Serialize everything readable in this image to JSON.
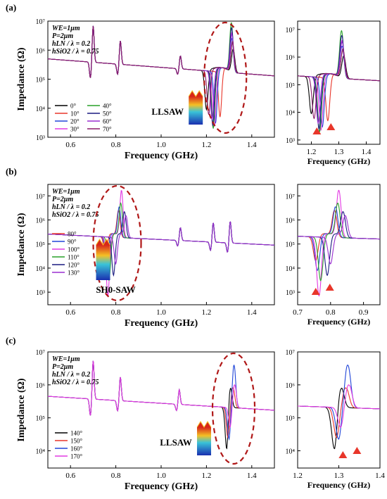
{
  "figure": {
    "panels": [
      {
        "label": "(a)",
        "annotation": [
          "WE=1μm",
          "P=2μm",
          "hLN / λ = 0.2",
          "hSiO2 / λ = 0.75"
        ],
        "mode_label": "LLSAW",
        "main_xlabel": "Frequency (GHz)",
        "main_ylabel": "Impedance (Ω)",
        "zoom_xlabel": "Frequency (GHz)"
      },
      {
        "label": "(b)",
        "annotation": [
          "WE=1μm",
          "P=2μm",
          "hLN / λ = 0.2",
          "hSiO2 / λ = 0.75"
        ],
        "mode_label": "SH0-SAW",
        "main_xlabel": "Frequency (GHz)",
        "main_ylabel": "Impedance (Ω)",
        "zoom_xlabel": "Frequency (GHz)"
      },
      {
        "label": "(c)",
        "annotation": [
          "WE=1μm",
          "P=2μm",
          "hLN / λ = 0.2",
          "hSiO2 / λ = 0.75"
        ],
        "mode_label": "LLSAW",
        "main_xlabel": "Frequency (GHz)",
        "main_ylabel": "Impedance (Ω)",
        "zoom_xlabel": "Frequency (GHz)"
      }
    ]
  },
  "chart_data": [
    {
      "type": "line",
      "panel": "(a)",
      "xlabel": "Frequency (GHz)",
      "ylabel": "Impedance (Ω)",
      "xlim": [
        0.5,
        1.5
      ],
      "ylim": [
        1000.0,
        10000000.0
      ],
      "yscale": "log",
      "xticks": [
        "0.6",
        "0.8",
        "1.0",
        "1.2",
        "1.4"
      ],
      "yticks": [
        "10³",
        "10⁴",
        "10⁵",
        "10⁶",
        "10⁷"
      ],
      "legend_position": "lower-left",
      "legend_columns": 2,
      "base_impedance_at_0_5GHz": 500000,
      "base_impedance_at_1_5GHz": 130000,
      "spurious_modes": [
        [
          0.7,
          1.4
        ],
        [
          0.82,
          0.9
        ],
        [
          1.085,
          0.5
        ]
      ],
      "series": [
        {
          "name": "0°",
          "color": "#000000",
          "resonance_ghz": 1.2,
          "antiresonance_ghz": 1.318,
          "dip_impedance": 9000,
          "peak_impedance": 1100000
        },
        {
          "name": "10°",
          "color": "#e8362a",
          "resonance_ghz": 1.26,
          "antiresonance_ghz": 1.315,
          "dip_impedance": 5000,
          "peak_impedance": 1700000
        },
        {
          "name": "20°",
          "color": "#2045d8",
          "resonance_ghz": 1.24,
          "antiresonance_ghz": 1.312,
          "dip_impedance": 3000,
          "peak_impedance": 2500000
        },
        {
          "name": "30°",
          "color": "#e238e2",
          "resonance_ghz": 1.235,
          "antiresonance_ghz": 1.312,
          "dip_impedance": 2300,
          "peak_impedance": 4000000
        },
        {
          "name": "40°",
          "color": "#28a028",
          "resonance_ghz": 1.23,
          "antiresonance_ghz": 1.31,
          "dip_impedance": 2000,
          "peak_impedance": 9000000
        },
        {
          "name": "50°",
          "color": "#1a1a80",
          "resonance_ghz": 1.228,
          "antiresonance_ghz": 1.311,
          "dip_impedance": 2500,
          "peak_impedance": 6000000
        },
        {
          "name": "60°",
          "color": "#9a2fd0",
          "resonance_ghz": 1.225,
          "antiresonance_ghz": 1.312,
          "dip_impedance": 4000,
          "peak_impedance": 3500000
        },
        {
          "name": "70°",
          "color": "#8a1a6a",
          "resonance_ghz": 1.21,
          "antiresonance_ghz": 1.315,
          "dip_impedance": 6000,
          "peak_impedance": 2000000
        }
      ],
      "zoom": {
        "xlim": [
          1.15,
          1.45
        ],
        "ylim": [
          700,
          20000000.0
        ],
        "xticks": [
          "1.2",
          "1.3",
          "1.4"
        ],
        "yticks": [
          "10³",
          "10⁴",
          "10⁵",
          "10⁶",
          "10⁷"
        ]
      }
    },
    {
      "type": "line",
      "panel": "(b)",
      "xlabel": "Frequency (GHz)",
      "ylabel": "Impedance (Ω)",
      "xlim": [
        0.5,
        1.5
      ],
      "ylim": [
        300,
        30000000.0
      ],
      "yscale": "log",
      "xticks": [
        "0.6",
        "0.8",
        "1.0",
        "1.2",
        "1.4"
      ],
      "yticks": [
        "10³",
        "10⁴",
        "10⁵",
        "10⁶",
        "10⁷"
      ],
      "legend_position": "right-of-annotation",
      "legend_columns": 1,
      "base_impedance_at_0_5GHz": 260000,
      "base_impedance_at_1_5GHz": 90000,
      "spurious_modes": [
        [
          1.085,
          0.6
        ],
        [
          1.23,
          0.9
        ],
        [
          1.305,
          1.0
        ]
      ],
      "series": [
        {
          "name": "80°",
          "color": "#e8362a",
          "resonance_ghz": 0.755,
          "antiresonance_ghz": 0.812,
          "dip_impedance": 20000,
          "peak_impedance": 2500000
        },
        {
          "name": "90°",
          "color": "#2045d8",
          "resonance_ghz": 0.76,
          "antiresonance_ghz": 0.815,
          "dip_impedance": 8000,
          "peak_impedance": 3500000
        },
        {
          "name": "100°",
          "color": "#e238e2",
          "resonance_ghz": 0.765,
          "antiresonance_ghz": 0.825,
          "dip_impedance": 700,
          "peak_impedance": 17000000
        },
        {
          "name": "110°",
          "color": "#28a028",
          "resonance_ghz": 0.77,
          "antiresonance_ghz": 0.822,
          "dip_impedance": 3000,
          "peak_impedance": 5000000
        },
        {
          "name": "120°",
          "color": "#1a1a80",
          "resonance_ghz": 0.79,
          "antiresonance_ghz": 0.838,
          "dip_impedance": 5000,
          "peak_impedance": 2200000
        },
        {
          "name": "130°",
          "color": "#9a2fd0",
          "resonance_ghz": 0.8,
          "antiresonance_ghz": 0.845,
          "dip_impedance": 15000,
          "peak_impedance": 1500000
        }
      ],
      "zoom": {
        "xlim": [
          0.7,
          0.95
        ],
        "ylim": [
          300,
          30000000.0
        ],
        "xticks": [
          "0.7",
          "0.8",
          "0.9"
        ],
        "yticks": [
          "10³",
          "10⁴",
          "10⁵",
          "10⁶",
          "10⁷"
        ]
      }
    },
    {
      "type": "line",
      "panel": "(c)",
      "xlabel": "Frequency (GHz)",
      "ylabel": "Impedance (Ω)",
      "xlim": [
        0.5,
        1.5
      ],
      "ylim": [
        3000,
        10000000.0
      ],
      "yscale": "log",
      "xticks": [
        "0.6",
        "0.8",
        "1.0",
        "1.2",
        "1.4"
      ],
      "yticks": [
        "10⁴",
        "10⁵",
        "10⁶",
        "10⁷"
      ],
      "legend_position": "lower-left",
      "legend_columns": 1,
      "base_impedance_at_0_5GHz": 450000,
      "base_impedance_at_1_5GHz": 170000,
      "spurious_modes": [
        [
          0.7,
          1.3
        ],
        [
          0.82,
          0.8
        ],
        [
          1.08,
          0.5
        ]
      ],
      "series": [
        {
          "name": "140°",
          "color": "#000000",
          "resonance_ghz": 1.29,
          "antiresonance_ghz": 1.305,
          "dip_impedance": 10000,
          "peak_impedance": 1000000
        },
        {
          "name": "150°",
          "color": "#e8362a",
          "resonance_ghz": 1.295,
          "antiresonance_ghz": 1.318,
          "dip_impedance": 25000,
          "peak_impedance": 800000
        },
        {
          "name": "160°",
          "color": "#2045d8",
          "resonance_ghz": 1.3,
          "antiresonance_ghz": 1.322,
          "dip_impedance": 22000,
          "peak_impedance": 4000000
        },
        {
          "name": "170°",
          "color": "#e238e2",
          "resonance_ghz": 1.305,
          "antiresonance_ghz": 1.325,
          "dip_impedance": 50000,
          "peak_impedance": 1000000
        }
      ],
      "zoom": {
        "xlim": [
          1.2,
          1.4
        ],
        "ylim": [
          3000,
          10000000.0
        ],
        "xticks": [
          "1.2",
          "1.3",
          "1.4"
        ],
        "yticks": [
          "10⁴",
          "10⁵",
          "10⁶",
          "10⁷"
        ]
      }
    }
  ]
}
